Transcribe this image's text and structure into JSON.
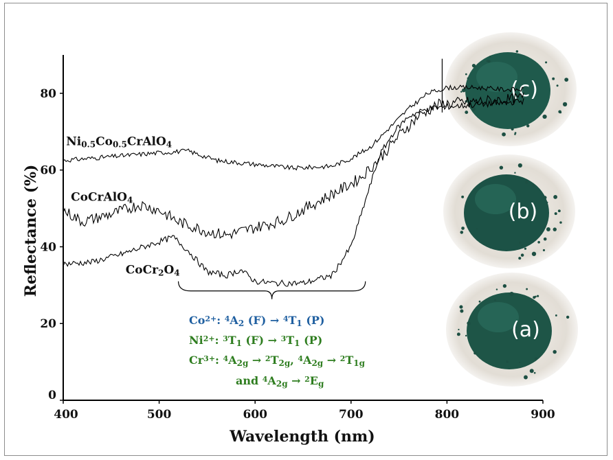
{
  "chart_data": {
    "type": "line",
    "xlabel": "Wavelength (nm)",
    "ylabel": "Reflectance (%)",
    "xlim": [
      400,
      900
    ],
    "ylim": [
      0,
      90
    ],
    "xticks": [
      400,
      500,
      600,
      700,
      800,
      900
    ],
    "xtick_labels": [
      "400",
      "500",
      "600",
      "700",
      "800",
      "900"
    ],
    "yticks": [
      0,
      20,
      40,
      60,
      80
    ],
    "ytick_labels": [
      "0",
      "20",
      "40",
      "60",
      "80"
    ],
    "grid": false,
    "series": [
      {
        "name_parts": [
          [
            "Ni",
            "n"
          ],
          [
            "0.5",
            "sub"
          ],
          [
            "Co",
            "n"
          ],
          [
            "0.5",
            "sub"
          ],
          [
            "CrAlO",
            "n"
          ],
          [
            "4",
            "sub"
          ]
        ],
        "label_anchor": [
          403,
          66.5
        ],
        "color": "#000000",
        "noise": 0.6,
        "x": [
          400,
          450,
          500,
          530,
          560,
          600,
          640,
          680,
          700,
          720,
          740,
          760,
          780,
          800,
          830,
          860,
          880
        ],
        "y": [
          62.5,
          63.5,
          64.5,
          65.0,
          62.5,
          61.5,
          60.5,
          61.0,
          63.0,
          66.0,
          71.0,
          76.0,
          80.0,
          81.5,
          81.5,
          81.0,
          81.0
        ]
      },
      {
        "name_parts": [
          [
            "CoCrAlO",
            "n"
          ],
          [
            "4",
            "sub"
          ]
        ],
        "label_anchor": [
          408,
          52.0
        ],
        "color": "#000000",
        "noise": 1.5,
        "x": [
          400,
          420,
          450,
          480,
          500,
          520,
          550,
          570,
          600,
          630,
          660,
          690,
          710,
          730,
          750,
          770,
          790,
          810,
          840,
          870,
          880
        ],
        "y": [
          49.5,
          46.5,
          48.5,
          51.0,
          49.5,
          46.5,
          44.0,
          43.0,
          45.0,
          47.0,
          51.0,
          55.0,
          58.0,
          63.0,
          69.0,
          74.0,
          77.0,
          77.5,
          78.0,
          78.5,
          79.0
        ]
      },
      {
        "name_parts": [
          [
            "CoCr",
            "n"
          ],
          [
            "2",
            "sub"
          ],
          [
            "O",
            "n"
          ],
          [
            "4",
            "sub"
          ]
        ],
        "label_anchor": [
          465,
          33.0
        ],
        "color": "#000000",
        "noise": 0.8,
        "x": [
          400,
          430,
          460,
          490,
          515,
          530,
          550,
          570,
          585,
          600,
          620,
          650,
          680,
          700,
          710,
          720,
          730,
          745,
          760,
          780,
          800,
          830,
          860,
          880
        ],
        "y": [
          35.5,
          36.0,
          38.0,
          40.5,
          42.5,
          39.0,
          33.5,
          32.5,
          34.0,
          31.0,
          30.5,
          30.5,
          32.5,
          40.0,
          48.0,
          56.0,
          64.0,
          70.0,
          74.0,
          76.0,
          76.5,
          77.0,
          77.5,
          78.0
        ]
      }
    ],
    "spike": {
      "x": 795,
      "y_top": 89,
      "y_bottom": 75
    },
    "brace": {
      "x_from": 520,
      "x_to": 715,
      "y": 28.5
    },
    "annotations": [
      {
        "color": "#1f5fa0",
        "parts": [
          [
            "Co",
            "n"
          ],
          [
            "2+",
            "sup"
          ],
          [
            ":  ",
            "n"
          ],
          [
            "4",
            "sup"
          ],
          [
            "A",
            "n"
          ],
          [
            "2",
            "sub"
          ],
          [
            " (F) → ",
            "n"
          ],
          [
            "4",
            "sup"
          ],
          [
            "T",
            "n"
          ],
          [
            "1",
            "sub"
          ],
          [
            " (P)",
            "n"
          ]
        ]
      },
      {
        "color": "#2e7d1f",
        "parts": [
          [
            "Ni",
            "n"
          ],
          [
            "2+",
            "sup"
          ],
          [
            ":  ",
            "n"
          ],
          [
            "3",
            "sup"
          ],
          [
            "T",
            "n"
          ],
          [
            "1",
            "sub"
          ],
          [
            " (F) → ",
            "n"
          ],
          [
            "3",
            "sup"
          ],
          [
            "T",
            "n"
          ],
          [
            "1",
            "sub"
          ],
          [
            " (P)",
            "n"
          ]
        ]
      },
      {
        "color": "#2e7d1f",
        "parts": [
          [
            "Cr",
            "n"
          ],
          [
            "3+",
            "sup"
          ],
          [
            ":  ",
            "n"
          ],
          [
            "4",
            "sup"
          ],
          [
            "A",
            "n"
          ],
          [
            "2g",
            "sub"
          ],
          [
            " → ",
            "n"
          ],
          [
            "2",
            "sup"
          ],
          [
            "T",
            "n"
          ],
          [
            "2g",
            "sub"
          ],
          [
            ", ",
            "n"
          ],
          [
            "4",
            "sup"
          ],
          [
            "A",
            "n"
          ],
          [
            "2g",
            "sub"
          ],
          [
            " → ",
            "n"
          ],
          [
            "2",
            "sup"
          ],
          [
            "T",
            "n"
          ],
          [
            "1g",
            "sub"
          ]
        ]
      },
      {
        "color": "#2e7d1f",
        "parts": [
          [
            "and ",
            "n"
          ],
          [
            "4",
            "sup"
          ],
          [
            "A",
            "n"
          ],
          [
            "2g",
            "sub"
          ],
          [
            " → ",
            "n"
          ],
          [
            "2",
            "sup"
          ],
          [
            "E",
            "n"
          ],
          [
            "g",
            "sub"
          ]
        ]
      }
    ],
    "photos": [
      {
        "label": "(c)",
        "body_color": "#1f5a4c"
      },
      {
        "label": "(b)",
        "body_color": "#1c5246"
      },
      {
        "label": "(a)",
        "body_color": "#1e5547"
      }
    ]
  }
}
